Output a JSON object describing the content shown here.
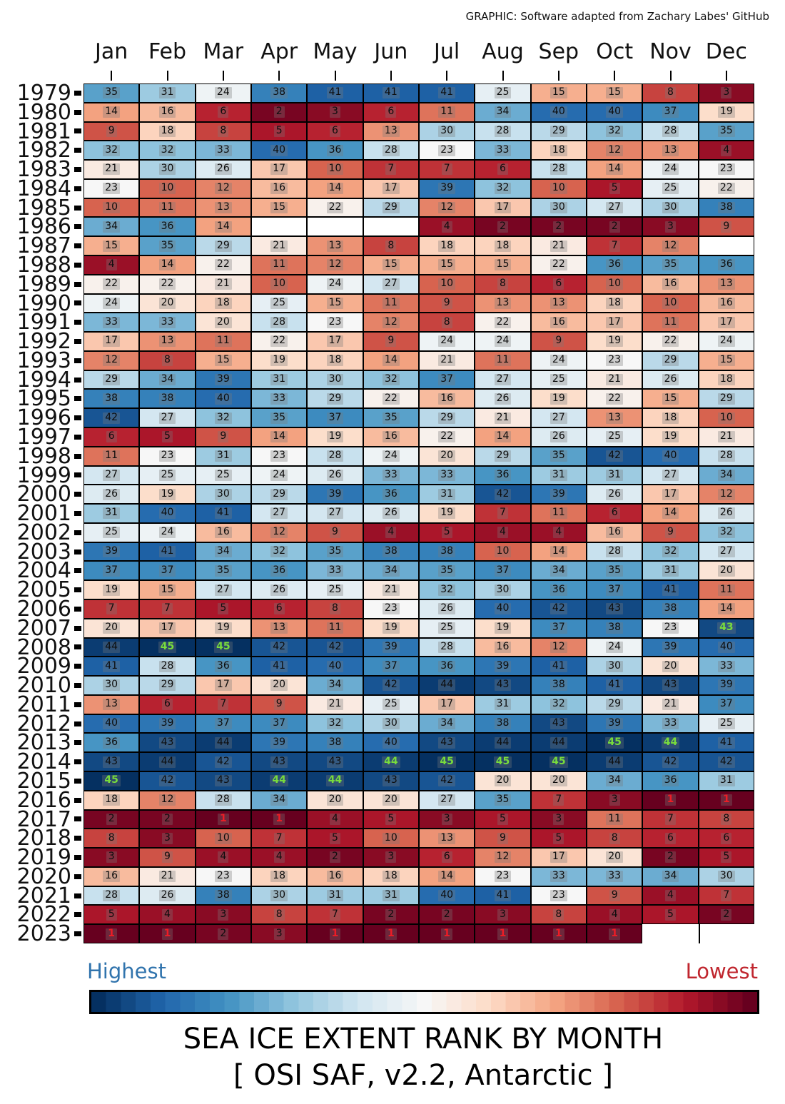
{
  "header": {
    "credit": "GRAPHIC: Software adapted from Zachary Labes' GitHub"
  },
  "legend": {
    "left_label": "Highest",
    "right_label": "Lowest",
    "left_color": "#3174ad",
    "right_color": "#c0262e"
  },
  "title": {
    "line1": "SEA ICE EXTENT RANK BY MONTH",
    "line2": "[ OSI SAF, v2.2, Antarctic ]"
  },
  "colors": {
    "record_high_text": "#78DC3C",
    "record_low_text": "#EE1C25",
    "grid_line": "#000000",
    "colormap_stops": [
      "#67001f",
      "#b2182b",
      "#d6604d",
      "#f4a582",
      "#fddbc7",
      "#f7f7f7",
      "#d1e5f0",
      "#92c5de",
      "#4393c3",
      "#2166ac",
      "#053061"
    ]
  },
  "chart_data": {
    "type": "heatmap",
    "title": "SEA ICE EXTENT RANK BY MONTH [ OSI SAF, v2.2, Antarctic ]",
    "colormap": "RdBu_r (dark red = rank 1 lowest, dark blue = rank 45 highest)",
    "legend_position": "bottom",
    "vmin": 1,
    "vmax": 45,
    "x_categories": [
      "Jan",
      "Feb",
      "Mar",
      "Apr",
      "May",
      "Jun",
      "Jul",
      "Aug",
      "Sep",
      "Oct",
      "Nov",
      "Dec"
    ],
    "rows": [
      {
        "year": "1979",
        "values": [
          35,
          31,
          24,
          38,
          41,
          41,
          41,
          25,
          15,
          15,
          8,
          3
        ]
      },
      {
        "year": "1980",
        "values": [
          14,
          16,
          6,
          2,
          3,
          6,
          11,
          34,
          40,
          40,
          37,
          19
        ]
      },
      {
        "year": "1981",
        "values": [
          9,
          18,
          8,
          5,
          6,
          13,
          30,
          28,
          29,
          32,
          28,
          35
        ]
      },
      {
        "year": "1982",
        "values": [
          32,
          32,
          33,
          40,
          36,
          28,
          23,
          33,
          18,
          12,
          13,
          4
        ]
      },
      {
        "year": "1983",
        "values": [
          21,
          30,
          26,
          17,
          10,
          7,
          7,
          6,
          28,
          14,
          24,
          23
        ]
      },
      {
        "year": "1984",
        "values": [
          23,
          10,
          12,
          16,
          14,
          17,
          39,
          32,
          10,
          5,
          25,
          22
        ]
      },
      {
        "year": "1985",
        "values": [
          10,
          11,
          13,
          15,
          22,
          29,
          12,
          17,
          30,
          27,
          30,
          38
        ]
      },
      {
        "year": "1986",
        "values": [
          34,
          36,
          14,
          null,
          null,
          null,
          4,
          2,
          2,
          2,
          3,
          9
        ]
      },
      {
        "year": "1987",
        "values": [
          15,
          35,
          29,
          21,
          13,
          8,
          18,
          18,
          21,
          7,
          12,
          null
        ]
      },
      {
        "year": "1988",
        "values": [
          4,
          14,
          22,
          11,
          12,
          15,
          15,
          15,
          22,
          36,
          35,
          36
        ]
      },
      {
        "year": "1989",
        "values": [
          22,
          22,
          21,
          10,
          24,
          27,
          10,
          8,
          6,
          10,
          16,
          13
        ]
      },
      {
        "year": "1990",
        "values": [
          24,
          20,
          18,
          25,
          15,
          11,
          9,
          13,
          13,
          18,
          10,
          16
        ]
      },
      {
        "year": "1991",
        "values": [
          33,
          33,
          20,
          28,
          23,
          12,
          8,
          22,
          16,
          17,
          11,
          17
        ]
      },
      {
        "year": "1992",
        "values": [
          17,
          13,
          11,
          22,
          17,
          9,
          24,
          24,
          9,
          19,
          22,
          24
        ]
      },
      {
        "year": "1993",
        "values": [
          12,
          8,
          15,
          19,
          18,
          14,
          21,
          11,
          24,
          23,
          29,
          15
        ]
      },
      {
        "year": "1994",
        "values": [
          29,
          34,
          39,
          31,
          30,
          32,
          37,
          27,
          25,
          21,
          26,
          18
        ]
      },
      {
        "year": "1995",
        "values": [
          38,
          38,
          40,
          33,
          29,
          22,
          16,
          26,
          19,
          22,
          15,
          29
        ]
      },
      {
        "year": "1996",
        "values": [
          42,
          27,
          32,
          35,
          37,
          35,
          29,
          21,
          27,
          13,
          18,
          10
        ]
      },
      {
        "year": "1997",
        "values": [
          6,
          5,
          9,
          14,
          19,
          16,
          22,
          14,
          26,
          25,
          19,
          21
        ]
      },
      {
        "year": "1998",
        "values": [
          11,
          23,
          31,
          23,
          28,
          24,
          20,
          29,
          35,
          42,
          40,
          28
        ]
      },
      {
        "year": "1999",
        "values": [
          27,
          25,
          25,
          24,
          26,
          33,
          33,
          36,
          31,
          31,
          27,
          34
        ]
      },
      {
        "year": "2000",
        "values": [
          26,
          19,
          30,
          29,
          39,
          36,
          31,
          42,
          39,
          26,
          17,
          12
        ]
      },
      {
        "year": "2001",
        "values": [
          31,
          40,
          41,
          27,
          27,
          26,
          19,
          7,
          11,
          6,
          14,
          26
        ]
      },
      {
        "year": "2002",
        "values": [
          25,
          24,
          16,
          12,
          9,
          4,
          5,
          4,
          4,
          16,
          9,
          32
        ]
      },
      {
        "year": "2003",
        "values": [
          39,
          41,
          34,
          32,
          35,
          38,
          38,
          10,
          14,
          28,
          32,
          27
        ]
      },
      {
        "year": "2004",
        "values": [
          37,
          37,
          35,
          36,
          33,
          34,
          35,
          37,
          34,
          35,
          31,
          20
        ]
      },
      {
        "year": "2005",
        "values": [
          19,
          15,
          27,
          26,
          25,
          21,
          32,
          30,
          36,
          37,
          41,
          11
        ]
      },
      {
        "year": "2006",
        "values": [
          7,
          7,
          5,
          6,
          8,
          23,
          26,
          40,
          42,
          43,
          38,
          14
        ]
      },
      {
        "year": "2007",
        "values": [
          20,
          17,
          19,
          13,
          11,
          19,
          25,
          19,
          37,
          38,
          23,
          43
        ]
      },
      {
        "year": "2008",
        "values": [
          44,
          45,
          45,
          42,
          42,
          39,
          28,
          16,
          12,
          24,
          39,
          40
        ]
      },
      {
        "year": "2009",
        "values": [
          41,
          28,
          36,
          41,
          40,
          37,
          36,
          39,
          41,
          30,
          20,
          33
        ]
      },
      {
        "year": "2010",
        "values": [
          30,
          29,
          17,
          20,
          34,
          42,
          44,
          43,
          38,
          41,
          43,
          39
        ]
      },
      {
        "year": "2011",
        "values": [
          13,
          6,
          7,
          9,
          21,
          25,
          17,
          31,
          32,
          29,
          21,
          37
        ]
      },
      {
        "year": "2012",
        "values": [
          40,
          39,
          37,
          37,
          32,
          30,
          34,
          38,
          43,
          39,
          33,
          25
        ]
      },
      {
        "year": "2013",
        "values": [
          36,
          43,
          44,
          39,
          38,
          40,
          43,
          44,
          44,
          45,
          44,
          41
        ]
      },
      {
        "year": "2014",
        "values": [
          43,
          44,
          42,
          43,
          43,
          44,
          45,
          45,
          45,
          44,
          42,
          42
        ]
      },
      {
        "year": "2015",
        "values": [
          45,
          42,
          43,
          44,
          44,
          43,
          42,
          20,
          20,
          34,
          36,
          31
        ]
      },
      {
        "year": "2016",
        "values": [
          18,
          12,
          28,
          34,
          20,
          20,
          27,
          35,
          7,
          3,
          1,
          1
        ]
      },
      {
        "year": "2017",
        "values": [
          2,
          2,
          1,
          1,
          4,
          5,
          3,
          5,
          3,
          11,
          7,
          8
        ]
      },
      {
        "year": "2018",
        "values": [
          8,
          3,
          10,
          7,
          5,
          10,
          13,
          9,
          5,
          8,
          6,
          6
        ]
      },
      {
        "year": "2019",
        "values": [
          3,
          9,
          4,
          4,
          2,
          3,
          6,
          12,
          17,
          20,
          2,
          5
        ]
      },
      {
        "year": "2020",
        "values": [
          16,
          21,
          23,
          18,
          16,
          18,
          14,
          23,
          33,
          33,
          34,
          30
        ]
      },
      {
        "year": "2021",
        "values": [
          28,
          26,
          38,
          30,
          31,
          31,
          40,
          41,
          23,
          9,
          4,
          7
        ]
      },
      {
        "year": "2022",
        "values": [
          5,
          4,
          3,
          8,
          7,
          2,
          2,
          3,
          8,
          4,
          5,
          2
        ]
      },
      {
        "year": "2023",
        "values": [
          1,
          1,
          2,
          3,
          1,
          1,
          1,
          1,
          1,
          1,
          null,
          null
        ]
      }
    ],
    "record_high_cells": [
      [
        "2007",
        11
      ],
      [
        "2008",
        1
      ],
      [
        "2008",
        2
      ],
      [
        "2013",
        9
      ],
      [
        "2013",
        10
      ],
      [
        "2014",
        5
      ],
      [
        "2014",
        6
      ],
      [
        "2014",
        7
      ],
      [
        "2014",
        8
      ],
      [
        "2015",
        0
      ],
      [
        "2015",
        3
      ],
      [
        "2015",
        4
      ]
    ],
    "record_low_cells": [
      [
        "2016",
        10
      ],
      [
        "2016",
        11
      ],
      [
        "2017",
        2
      ],
      [
        "2017",
        3
      ],
      [
        "2023",
        0
      ],
      [
        "2023",
        1
      ],
      [
        "2023",
        4
      ],
      [
        "2023",
        5
      ],
      [
        "2023",
        6
      ],
      [
        "2023",
        7
      ],
      [
        "2023",
        8
      ],
      [
        "2023",
        9
      ]
    ],
    "missing_bordered_cells": [
      [
        "1986",
        3
      ],
      [
        "1986",
        4
      ],
      [
        "1986",
        5
      ],
      [
        "1987",
        11
      ]
    ],
    "missing_open_cells": [
      [
        "2023",
        10
      ],
      [
        "2023",
        11
      ]
    ]
  }
}
